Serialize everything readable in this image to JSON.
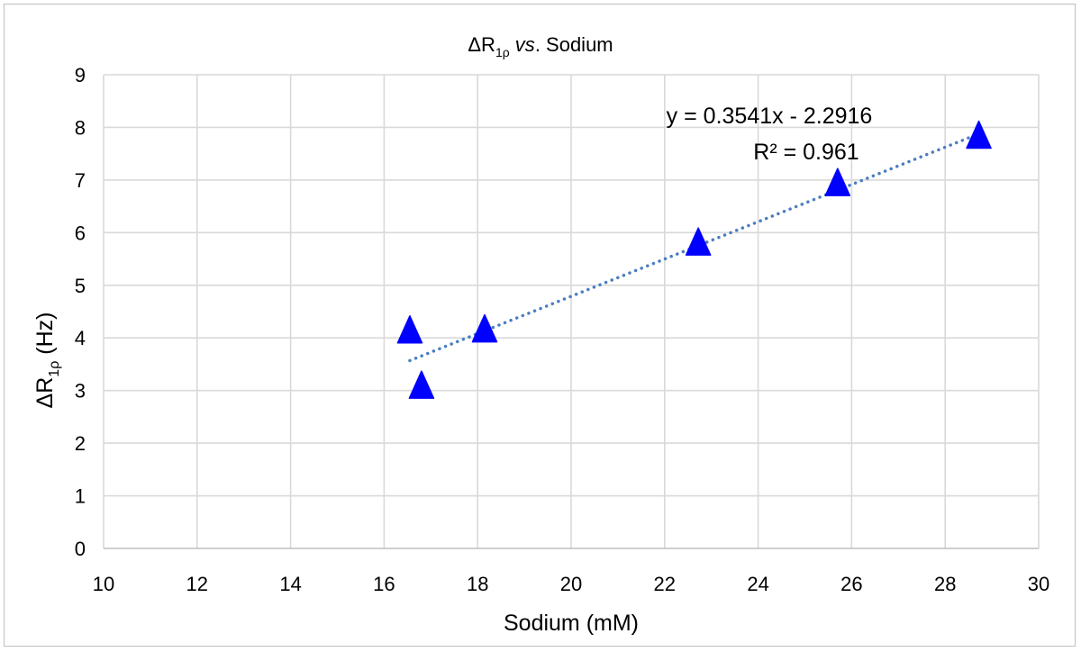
{
  "chart_data": {
    "type": "scatter",
    "title": {
      "prefix": "ΔR",
      "subscript": "1ρ",
      "italic_part": " vs",
      "suffix": ". Sodium"
    },
    "xlabel": "Sodium (mM)",
    "ylabel": {
      "prefix": "ΔR",
      "subscript": "1ρ",
      "suffix": " (Hz)"
    },
    "xlim": [
      10,
      30
    ],
    "ylim": [
      0,
      9
    ],
    "x_ticks": [
      "10",
      "12",
      "14",
      "16",
      "18",
      "20",
      "22",
      "24",
      "26",
      "28",
      "30"
    ],
    "y_ticks": [
      "0",
      "1",
      "2",
      "3",
      "4",
      "5",
      "6",
      "7",
      "8",
      "9"
    ],
    "grid": true,
    "marker_color": "#0000ff",
    "trendline_color": "#4a7ebf",
    "series": [
      {
        "marker": "triangle",
        "points": [
          {
            "x": 16.55,
            "y": 4.1
          },
          {
            "x": 16.8,
            "y": 3.05
          },
          {
            "x": 18.15,
            "y": 4.12
          },
          {
            "x": 22.72,
            "y": 5.77
          },
          {
            "x": 25.7,
            "y": 6.9
          },
          {
            "x": 28.72,
            "y": 7.8
          }
        ]
      }
    ],
    "trendline": {
      "type": "linear",
      "slope": 0.3541,
      "intercept": -2.2916,
      "x_start": 16.55,
      "x_end": 28.72,
      "equation": "y = 0.3541x - 2.2916",
      "r_squared": "R² = 0.961"
    }
  }
}
